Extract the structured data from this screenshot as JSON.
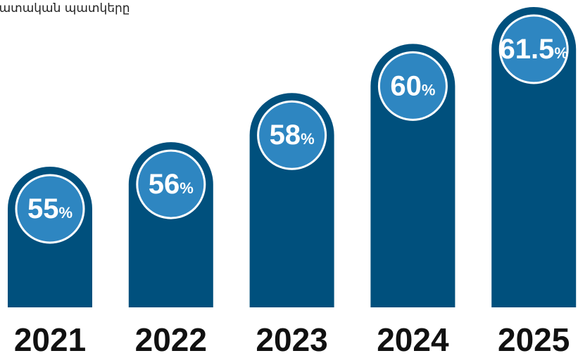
{
  "chart_data": {
    "type": "bar",
    "title": "լատական պատկերը",
    "categories": [
      "2021",
      "2022",
      "2023",
      "2024",
      "2025"
    ],
    "values": [
      55,
      56,
      58,
      60,
      61.5
    ],
    "value_labels": [
      "55%",
      "56%",
      "58%",
      "60%",
      "61.5%"
    ],
    "color": "#00507d",
    "label_color": "#2e86c1"
  }
}
